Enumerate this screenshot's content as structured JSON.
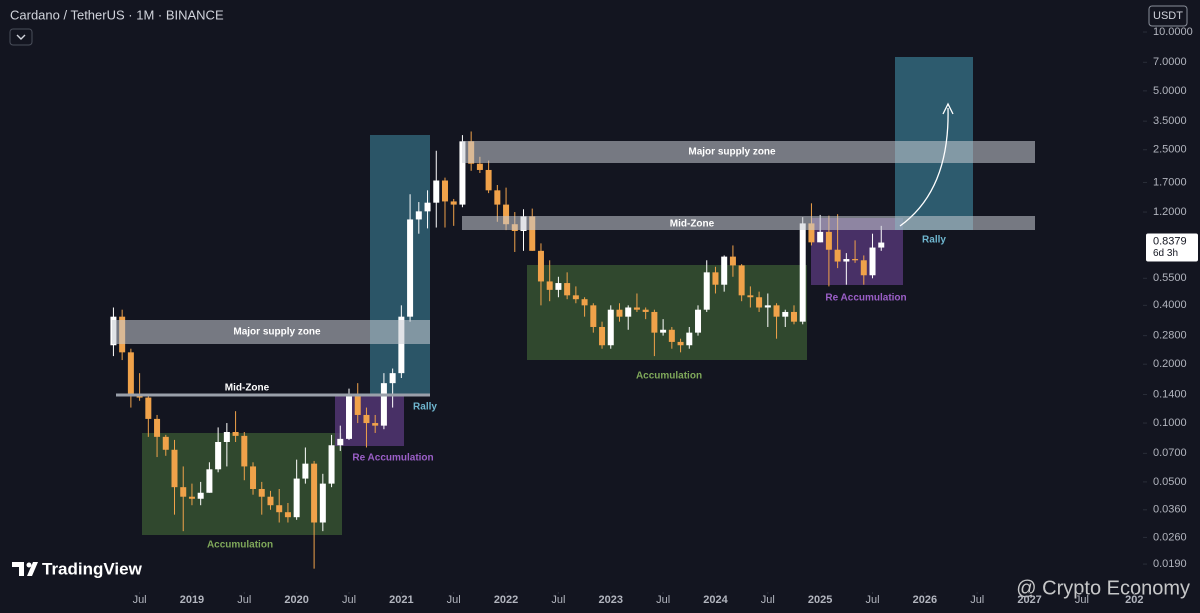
{
  "chart_data": {
    "type": "candlestick",
    "title": "Cardano / TetherUS · 1M · BINANCE",
    "currency": "USDT",
    "branding": "TradingView",
    "watermark": "@ Crypto Economy",
    "countdown": "6d 3h",
    "log_scale": true,
    "up_color": "#ffffff",
    "down_color": "#f0a24a",
    "ylim": [
      0.014,
      14.58
    ],
    "yticks": [
      {
        "value": 10,
        "label": "10.0000"
      },
      {
        "value": 7,
        "label": "7.0000"
      },
      {
        "value": 5,
        "label": "5.0000"
      },
      {
        "value": 3.5,
        "label": "3.5000"
      },
      {
        "value": 2.5,
        "label": "2.5000"
      },
      {
        "value": 1.7,
        "label": "1.7000"
      },
      {
        "value": 1.2,
        "label": "1.2000"
      },
      {
        "value": 0.55,
        "label": "0.5500"
      },
      {
        "value": 0.4,
        "label": "0.4000"
      },
      {
        "value": 0.28,
        "label": "0.2800"
      },
      {
        "value": 0.2,
        "label": "0.2000"
      },
      {
        "value": 0.14,
        "label": "0.1400"
      },
      {
        "value": 0.1,
        "label": "0.1000"
      },
      {
        "value": 0.07,
        "label": "0.0700"
      },
      {
        "value": 0.05,
        "label": "0.0500"
      },
      {
        "value": 0.036,
        "label": "0.0360"
      },
      {
        "value": 0.026,
        "label": "0.0260"
      },
      {
        "value": 0.019,
        "label": "0.0190"
      }
    ],
    "xlim": [
      "2017-03",
      "2028-02"
    ],
    "xticks": [
      {
        "value": "2018-07",
        "label": "Jul"
      },
      {
        "value": "2019-01",
        "label": "2019"
      },
      {
        "value": "2019-07",
        "label": "Jul"
      },
      {
        "value": "2020-01",
        "label": "2020"
      },
      {
        "value": "2020-07",
        "label": "Jul"
      },
      {
        "value": "2021-01",
        "label": "2021"
      },
      {
        "value": "2021-07",
        "label": "Jul"
      },
      {
        "value": "2022-01",
        "label": "2022"
      },
      {
        "value": "2022-07",
        "label": "Jul"
      },
      {
        "value": "2023-01",
        "label": "2023"
      },
      {
        "value": "2023-07",
        "label": "Jul"
      },
      {
        "value": "2024-01",
        "label": "2024"
      },
      {
        "value": "2024-07",
        "label": "Jul"
      },
      {
        "value": "2025-01",
        "label": "2025"
      },
      {
        "value": "2025-07",
        "label": "Jul"
      },
      {
        "value": "2026-01",
        "label": "2026"
      },
      {
        "value": "2026-07",
        "label": "Jul"
      },
      {
        "value": "2027-01",
        "label": "2027"
      },
      {
        "value": "2027-07",
        "label": "Jul"
      },
      {
        "value": "2028-01",
        "label": "202"
      }
    ],
    "x": [
      "2018-04",
      "2018-05",
      "2018-06",
      "2018-07",
      "2018-08",
      "2018-09",
      "2018-10",
      "2018-11",
      "2018-12",
      "2019-01",
      "2019-02",
      "2019-03",
      "2019-04",
      "2019-05",
      "2019-06",
      "2019-07",
      "2019-08",
      "2019-09",
      "2019-10",
      "2019-11",
      "2019-12",
      "2020-01",
      "2020-02",
      "2020-03",
      "2020-04",
      "2020-05",
      "2020-06",
      "2020-07",
      "2020-08",
      "2020-09",
      "2020-10",
      "2020-11",
      "2020-12",
      "2021-01",
      "2021-02",
      "2021-03",
      "2021-04",
      "2021-05",
      "2021-06",
      "2021-07",
      "2021-08",
      "2021-09",
      "2021-10",
      "2021-11",
      "2021-12",
      "2022-01",
      "2022-02",
      "2022-03",
      "2022-04",
      "2022-05",
      "2022-06",
      "2022-07",
      "2022-08",
      "2022-09",
      "2022-10",
      "2022-11",
      "2022-12",
      "2023-01",
      "2023-02",
      "2023-03",
      "2023-04",
      "2023-05",
      "2023-06",
      "2023-07",
      "2023-08",
      "2023-09",
      "2023-10",
      "2023-11",
      "2023-12",
      "2024-01",
      "2024-02",
      "2024-03",
      "2024-04",
      "2024-05",
      "2024-06",
      "2024-07",
      "2024-08",
      "2024-09",
      "2024-10",
      "2024-11",
      "2024-12",
      "2025-01",
      "2025-02",
      "2025-03",
      "2025-04",
      "2025-05",
      "2025-06",
      "2025-07",
      "2025-08"
    ],
    "open": [
      0.25,
      0.35,
      0.23,
      0.14,
      0.135,
      0.105,
      0.085,
      0.073,
      0.047,
      0.042,
      0.041,
      0.044,
      0.058,
      0.08,
      0.09,
      0.086,
      0.06,
      0.046,
      0.042,
      0.038,
      0.035,
      0.033,
      0.052,
      0.062,
      0.031,
      0.049,
      0.077,
      0.083,
      0.14,
      0.11,
      0.1,
      0.097,
      0.16,
      0.18,
      0.35,
      1.1,
      1.21,
      1.34,
      1.74,
      1.36,
      1.31,
      2.76,
      2.12,
      1.97,
      1.55,
      1.31,
      1.04,
      0.96,
      1.14,
      0.76,
      0.53,
      0.48,
      0.52,
      0.45,
      0.43,
      0.4,
      0.31,
      0.25,
      0.38,
      0.35,
      0.39,
      0.38,
      0.37,
      0.29,
      0.3,
      0.26,
      0.25,
      0.29,
      0.38,
      0.59,
      0.51,
      0.71,
      0.64,
      0.45,
      0.44,
      0.39,
      0.4,
      0.35,
      0.37,
      0.33,
      1.05,
      0.84,
      0.95,
      0.77,
      0.67,
      0.69,
      0.68,
      0.57,
      0.79
    ],
    "high": [
      0.39,
      0.38,
      0.24,
      0.18,
      0.14,
      0.11,
      0.087,
      0.082,
      0.06,
      0.049,
      0.05,
      0.063,
      0.095,
      0.1,
      0.115,
      0.09,
      0.063,
      0.05,
      0.045,
      0.046,
      0.039,
      0.065,
      0.075,
      0.064,
      0.055,
      0.087,
      0.097,
      0.15,
      0.16,
      0.12,
      0.11,
      0.18,
      0.19,
      0.4,
      1.48,
      1.35,
      1.55,
      2.47,
      1.8,
      1.4,
      2.97,
      3.1,
      2.3,
      2.2,
      1.65,
      1.6,
      1.2,
      1.24,
      1.25,
      0.83,
      0.68,
      0.56,
      0.59,
      0.5,
      0.44,
      0.41,
      0.33,
      0.4,
      0.41,
      0.4,
      0.46,
      0.39,
      0.38,
      0.34,
      0.31,
      0.27,
      0.31,
      0.4,
      0.68,
      0.63,
      0.72,
      0.81,
      0.65,
      0.5,
      0.47,
      0.46,
      0.41,
      0.38,
      0.4,
      1.13,
      1.33,
      1.16,
      1.15,
      1.17,
      0.74,
      0.86,
      0.72,
      0.93,
      1.02
    ],
    "low": [
      0.22,
      0.21,
      0.12,
      0.13,
      0.085,
      0.067,
      0.068,
      0.034,
      0.028,
      0.038,
      0.038,
      0.044,
      0.056,
      0.06,
      0.08,
      0.051,
      0.043,
      0.034,
      0.036,
      0.031,
      0.031,
      0.032,
      0.049,
      0.018,
      0.028,
      0.047,
      0.072,
      0.082,
      0.1,
      0.075,
      0.089,
      0.093,
      0.12,
      0.17,
      0.33,
      0.93,
      0.99,
      1.0,
      1.0,
      1.02,
      1.27,
      1.95,
      1.9,
      1.5,
      1.07,
      0.97,
      0.75,
      0.76,
      0.76,
      0.4,
      0.42,
      0.44,
      0.43,
      0.41,
      0.35,
      0.29,
      0.24,
      0.24,
      0.33,
      0.3,
      0.37,
      0.34,
      0.22,
      0.28,
      0.24,
      0.23,
      0.24,
      0.28,
      0.37,
      0.46,
      0.47,
      0.56,
      0.42,
      0.39,
      0.37,
      0.31,
      0.27,
      0.31,
      0.32,
      0.32,
      0.81,
      0.84,
      0.5,
      0.62,
      0.51,
      0.66,
      0.51,
      0.55,
      0.76
    ],
    "close": [
      0.35,
      0.23,
      0.14,
      0.135,
      0.105,
      0.085,
      0.073,
      0.047,
      0.042,
      0.041,
      0.044,
      0.058,
      0.08,
      0.09,
      0.086,
      0.06,
      0.046,
      0.042,
      0.038,
      0.035,
      0.033,
      0.052,
      0.062,
      0.031,
      0.049,
      0.077,
      0.083,
      0.14,
      0.11,
      0.1,
      0.097,
      0.16,
      0.18,
      0.35,
      1.1,
      1.21,
      1.34,
      1.74,
      1.36,
      1.31,
      2.76,
      2.12,
      1.97,
      1.55,
      1.31,
      1.04,
      0.96,
      1.14,
      0.76,
      0.53,
      0.48,
      0.52,
      0.45,
      0.43,
      0.4,
      0.31,
      0.25,
      0.38,
      0.35,
      0.39,
      0.38,
      0.37,
      0.29,
      0.3,
      0.26,
      0.25,
      0.29,
      0.38,
      0.59,
      0.51,
      0.71,
      0.64,
      0.45,
      0.44,
      0.39,
      0.4,
      0.35,
      0.37,
      0.33,
      1.05,
      0.84,
      0.95,
      0.77,
      0.67,
      0.69,
      0.68,
      0.57,
      0.79,
      0.8379
    ],
    "annotations": [
      "Major supply zone",
      "Mid-Zone",
      "Accumulation",
      "Re Accumulation",
      "Rally",
      "Major supply zone",
      "Mid-Zone",
      "Accumulation",
      "Re Accumulation",
      "Rally"
    ]
  }
}
